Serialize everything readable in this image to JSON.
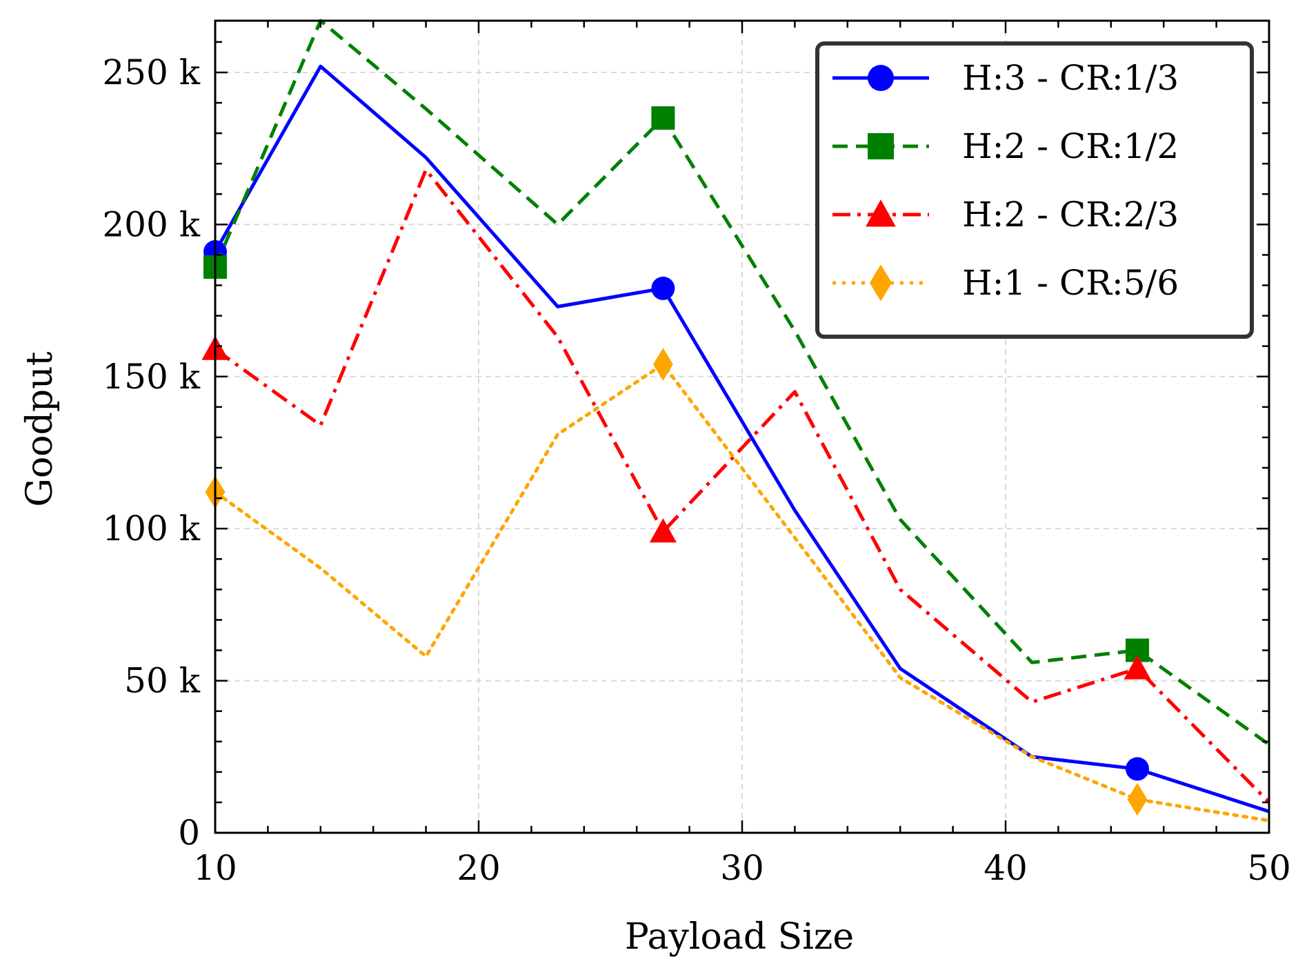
{
  "chart_data": {
    "type": "line",
    "title": "",
    "xlabel": "Payload Size",
    "ylabel": "Goodput",
    "xlim": [
      10,
      50
    ],
    "ylim": [
      0,
      267000
    ],
    "grid": true,
    "legend_position": "top-right",
    "x_ticks": [
      10,
      20,
      30,
      40,
      50
    ],
    "x_tick_labels": [
      "10",
      "20",
      "30",
      "40",
      "50"
    ],
    "y_ticks": [
      0,
      50000,
      100000,
      150000,
      200000,
      250000
    ],
    "y_tick_labels": [
      "0",
      "50 k",
      "100 k",
      "150 k",
      "200 k",
      "250 k"
    ],
    "x": [
      10,
      14,
      18,
      23,
      27,
      32,
      36,
      41,
      45,
      50
    ],
    "series": [
      {
        "name": "H:3 - CR:1/3",
        "color": "#0000ff",
        "line_style": "solid",
        "marker": "circle",
        "values": [
          191000,
          252000,
          222000,
          173000,
          179000,
          106000,
          54000,
          25000,
          21000,
          7000
        ]
      },
      {
        "name": "H:2 - CR:1/2",
        "color": "#008000",
        "line_style": "dashed",
        "marker": "square",
        "values": [
          186000,
          267000,
          238000,
          200000,
          235000,
          165000,
          103000,
          56000,
          60000,
          29000
        ]
      },
      {
        "name": "H:2 - CR:2/3",
        "color": "#ff0000",
        "line_style": "dashdot",
        "marker": "triangle",
        "values": [
          159000,
          134000,
          218000,
          163000,
          99000,
          145000,
          80000,
          43000,
          54000,
          10000
        ]
      },
      {
        "name": "H:1 - CR:5/6",
        "color": "#ffa500",
        "line_style": "dotted",
        "marker": "diamond",
        "values": [
          112000,
          87000,
          58000,
          131000,
          154000,
          97000,
          51000,
          25000,
          11000,
          4000
        ]
      }
    ]
  }
}
